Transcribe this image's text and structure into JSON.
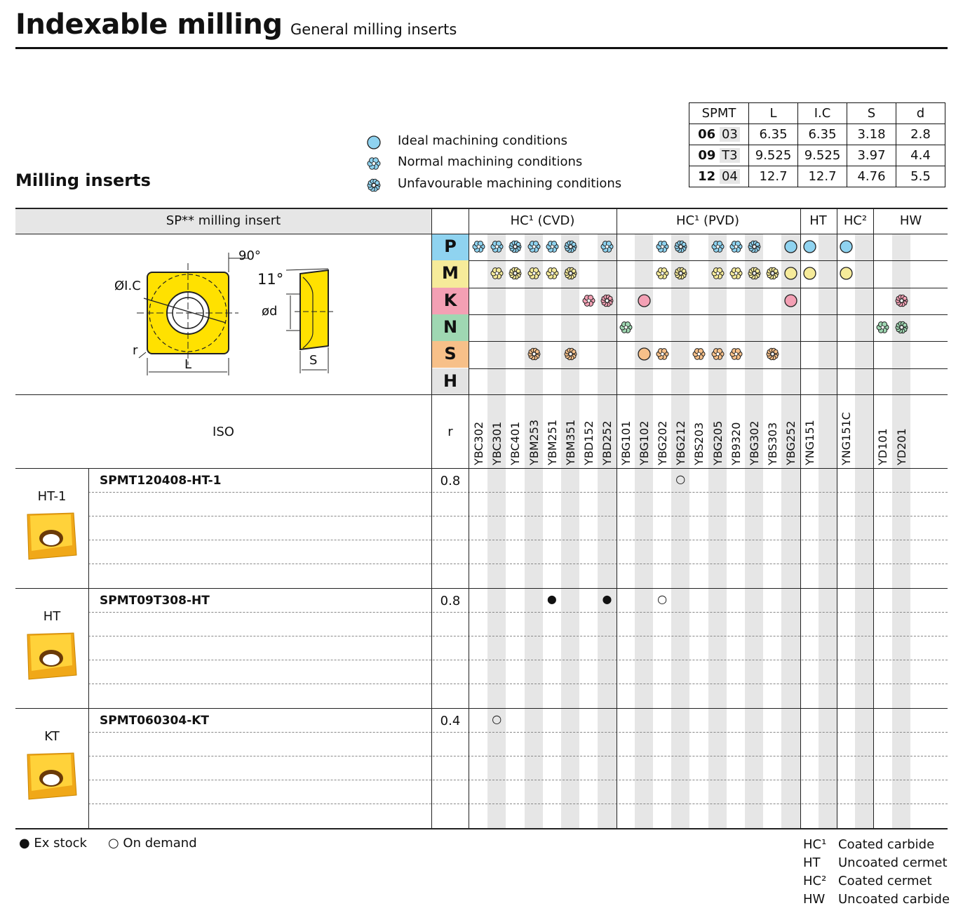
{
  "header": {
    "title": "Indexable milling",
    "subtitle": "General milling inserts"
  },
  "section_title": "Milling inserts",
  "legend": {
    "ideal": "Ideal machining conditions",
    "normal": "Normal machining conditions",
    "unfavourable": "Unfavourable machining conditions"
  },
  "spmt_table": {
    "headers": [
      "SPMT",
      "L",
      "I.C",
      "S",
      "d"
    ],
    "rows": [
      {
        "code_bold": "06",
        "code": "03",
        "L": "6.35",
        "IC": "6.35",
        "S": "3.18",
        "d": "2.8"
      },
      {
        "code_bold": "09",
        "code": "T3",
        "L": "9.525",
        "IC": "9.525",
        "S": "3.97",
        "d": "4.4"
      },
      {
        "code_bold": "12",
        "code": "04",
        "L": "12.7",
        "IC": "12.7",
        "S": "4.76",
        "d": "5.5"
      }
    ]
  },
  "main_header": {
    "insert_label": "SP** milling insert",
    "group_cvd": "HC¹ (CVD)",
    "group_pvd": "HC¹ (PVD)",
    "group_ht": "HT",
    "group_hc2": "HC²",
    "group_hw": "HW",
    "iso_label": "ISO",
    "r_label": "r"
  },
  "diagram": {
    "angle1": "90°",
    "angle2": "11°",
    "ic": "ØI.C",
    "d": "ød",
    "r": "r",
    "L": "L",
    "S": "S"
  },
  "materials": [
    {
      "letter": "P",
      "color": "#8fd3f0"
    },
    {
      "letter": "M",
      "color": "#f6eb9a"
    },
    {
      "letter": "K",
      "color": "#f3a0b4"
    },
    {
      "letter": "N",
      "color": "#9fd7b2"
    },
    {
      "letter": "S",
      "color": "#f7c089"
    },
    {
      "letter": "H",
      "color": "#e3e3e3"
    }
  ],
  "grades": [
    "YBC302",
    "YBC301",
    "YBC401",
    "YBM253",
    "YBM251",
    "YBM351",
    "YBD152",
    "YBD252",
    "YBG101",
    "YBG102",
    "YBG202",
    "YBG212",
    "YBS203",
    "YBG205",
    "YB9320",
    "YBG302",
    "YBS303",
    "YBG252",
    "YNG151",
    "",
    "YNG151C",
    "",
    "YD101",
    "YD201",
    ""
  ],
  "matrix": {
    "P": [
      2,
      2,
      3,
      2,
      2,
      3,
      0,
      2,
      0,
      0,
      2,
      3,
      0,
      2,
      2,
      3,
      0,
      1,
      1,
      0,
      1,
      0,
      0,
      0,
      0
    ],
    "M": [
      0,
      2,
      3,
      2,
      2,
      3,
      0,
      0,
      0,
      0,
      2,
      3,
      0,
      2,
      2,
      3,
      3,
      1,
      1,
      0,
      1,
      0,
      0,
      0,
      0
    ],
    "K": [
      0,
      0,
      0,
      0,
      0,
      0,
      2,
      3,
      0,
      1,
      0,
      0,
      0,
      0,
      0,
      0,
      0,
      1,
      0,
      0,
      0,
      0,
      0,
      3,
      0
    ],
    "N": [
      0,
      0,
      0,
      0,
      0,
      0,
      0,
      0,
      2,
      0,
      0,
      0,
      0,
      0,
      0,
      0,
      0,
      0,
      0,
      0,
      0,
      0,
      2,
      3,
      0
    ],
    "S": [
      0,
      0,
      0,
      3,
      0,
      3,
      0,
      0,
      0,
      1,
      2,
      0,
      2,
      2,
      2,
      0,
      3,
      0,
      0,
      0,
      0,
      0,
      0,
      0,
      0
    ],
    "H": [
      0,
      0,
      0,
      0,
      0,
      0,
      0,
      0,
      0,
      0,
      0,
      0,
      0,
      0,
      0,
      0,
      0,
      0,
      0,
      0,
      0,
      0,
      0,
      0,
      0
    ]
  },
  "inserts": [
    {
      "family": "HT-1",
      "iso": "SPMT120408-HT-1",
      "r": "0.8",
      "marks": [
        {
          "col": 11,
          "type": "on-demand"
        }
      ]
    },
    {
      "family": "HT",
      "iso": "SPMT09T308-HT",
      "r": "0.8",
      "marks": [
        {
          "col": 4,
          "type": "ex-stock"
        },
        {
          "col": 7,
          "type": "ex-stock"
        },
        {
          "col": 10,
          "type": "on-demand"
        }
      ]
    },
    {
      "family": "KT",
      "iso": "SPMT060304-KT",
      "r": "0.4",
      "marks": [
        {
          "col": 1,
          "type": "on-demand"
        }
      ]
    }
  ],
  "footer": {
    "ex_stock": "● Ex stock",
    "on_demand": "○ On demand",
    "key": [
      {
        "code": "HC¹",
        "desc": "Coated carbide"
      },
      {
        "code": "HT",
        "desc": "Uncoated cermet"
      },
      {
        "code": "HC²",
        "desc": "Coated cermet"
      },
      {
        "code": "HW",
        "desc": "Uncoated carbide"
      }
    ]
  },
  "colors": {
    "ideal": "#8fd3f0",
    "insert_yellow": "#ffe100",
    "insert_gold": "#f0a818",
    "grey_band": "#e6e6e6"
  }
}
